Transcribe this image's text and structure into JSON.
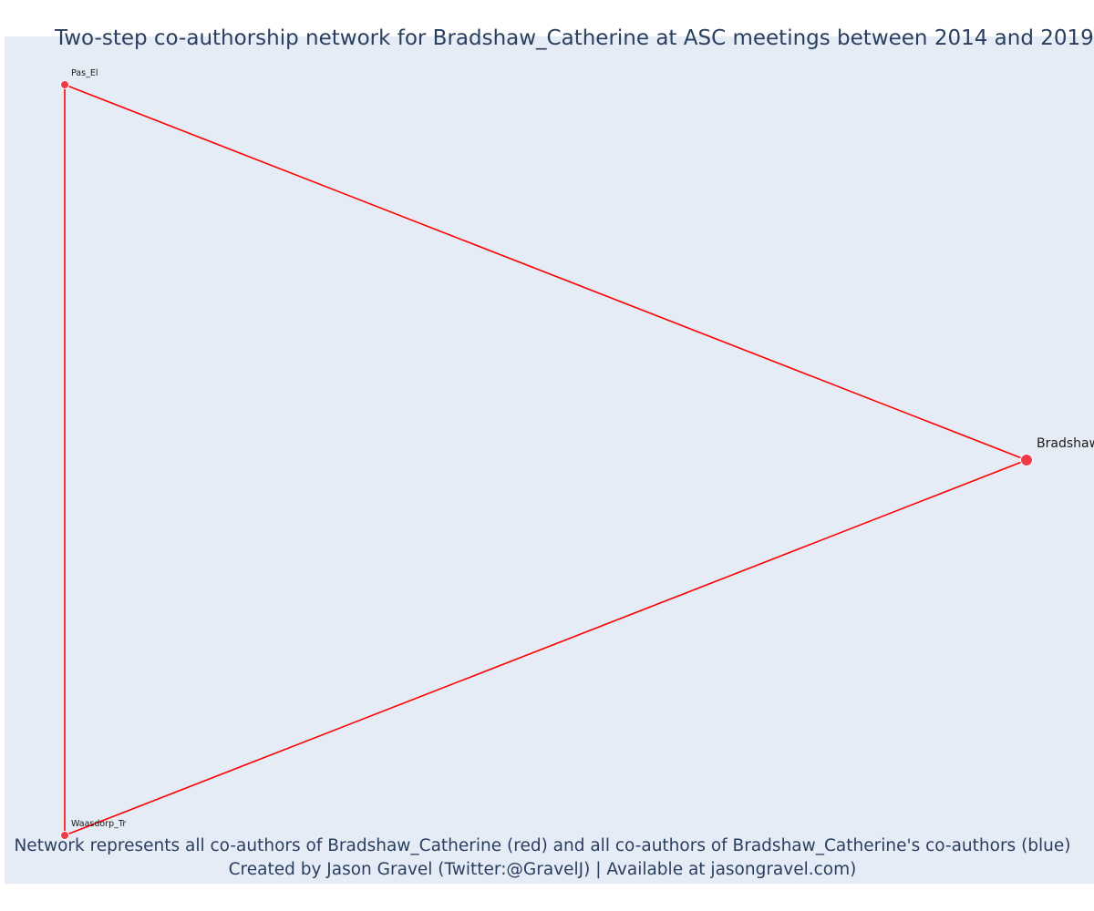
{
  "chart_data": {
    "type": "network",
    "title": "Two-step co-authorship network for Bradshaw_Catherine at ASC meetings between 2014 and 2019",
    "captions": [
      "Network represents all co-authors of Bradshaw_Catherine (red) and all co-authors of Bradshaw_Catherine's co-authors (blue)",
      "Created by Jason Gravel (Twitter:@GravelJ) | Available at jasongravel.com)"
    ],
    "node_color": "#f03a47",
    "edge_color": "#ff0000",
    "background_color": "#e5ecf6",
    "nodes": [
      {
        "id": "pas",
        "label": "Pas_El",
        "x": 0.0,
        "y": 1.0,
        "role": "co-author",
        "ego": false
      },
      {
        "id": "bradshaw",
        "label": "Bradshaw_Catherine",
        "x": 1.0,
        "y": 0.5,
        "role": "ego",
        "ego": true
      },
      {
        "id": "waasdorp",
        "label": "Waasdorp_Tr",
        "x": 0.0,
        "y": 0.0,
        "role": "co-author",
        "ego": false
      }
    ],
    "edges": [
      {
        "source": "pas",
        "target": "bradshaw"
      },
      {
        "source": "bradshaw",
        "target": "waasdorp"
      },
      {
        "source": "waasdorp",
        "target": "pas"
      }
    ]
  }
}
